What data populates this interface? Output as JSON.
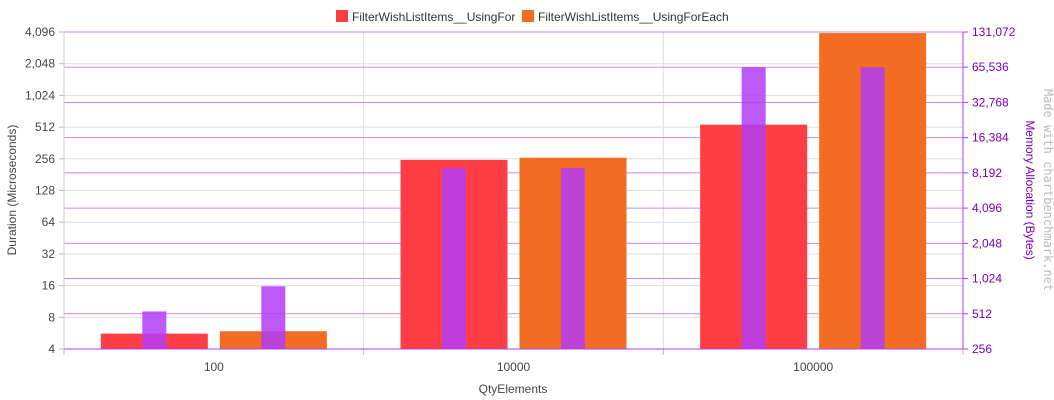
{
  "chart_data": {
    "type": "bar",
    "categories": [
      "100",
      "10000",
      "100000"
    ],
    "series": [
      {
        "name": "FilterWishListItems__UsingFor",
        "color": "#ff3d45",
        "duration": [
          5.6,
          250,
          540
        ],
        "memory": [
          536,
          9000,
          65536
        ]
      },
      {
        "name": "FilterWishListItems__UsingForEach",
        "color": "#f26c22",
        "duration": [
          5.9,
          262,
          4000
        ],
        "memory": [
          880,
          9000,
          65536
        ]
      }
    ],
    "memory_bar_color": "#b23cf4",
    "xlabel": "QtyElements",
    "ylabel": "Duration (Microseconds)",
    "y2label": "Memory Allocation (Bytes)",
    "yscale": "log2",
    "ylim": [
      4,
      4096
    ],
    "y2lim": [
      256,
      131072
    ],
    "yticks": [
      "4",
      "8",
      "16",
      "32",
      "64",
      "128",
      "256",
      "512",
      "1,024",
      "2,048",
      "4,096"
    ],
    "y2ticks": [
      "256",
      "512",
      "1,024",
      "2,048",
      "4,096",
      "8,192",
      "16,384",
      "32,768",
      "65,536",
      "131,072"
    ],
    "grid": true,
    "legend_position": "top",
    "watermark": "Made with chartbenchmark.net"
  }
}
